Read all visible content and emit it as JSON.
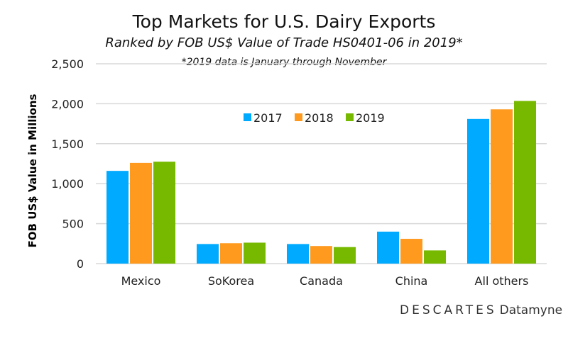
{
  "chart_data": {
    "type": "bar",
    "title": "Top Markets for U.S. Dairy Exports",
    "subtitle": "Ranked by FOB US$ Value of Trade HS0401-06 in 2019*",
    "note": "*2019 data is January through November",
    "xlabel": "",
    "ylabel": "FOB US$ Value in Millions",
    "ylim": [
      0,
      2500
    ],
    "yticks": [
      "0",
      "500",
      "1,000",
      "1,500",
      "2,000",
      "2,500"
    ],
    "grid": true,
    "legend_position": "top-center",
    "categories": [
      "Mexico",
      "SoKorea",
      "Canada",
      "China",
      "All others"
    ],
    "series": [
      {
        "name": "2017",
        "color": "#00aaff",
        "values": [
          1160,
          245,
          245,
          400,
          1810
        ]
      },
      {
        "name": "2018",
        "color": "#ff9a1f",
        "values": [
          1260,
          255,
          220,
          310,
          1930
        ]
      },
      {
        "name": "2019",
        "color": "#76b900",
        "values": [
          1275,
          262,
          207,
          165,
          2035
        ]
      }
    ]
  },
  "logo": {
    "brand": "DESCARTES",
    "product": "Datamyne"
  }
}
